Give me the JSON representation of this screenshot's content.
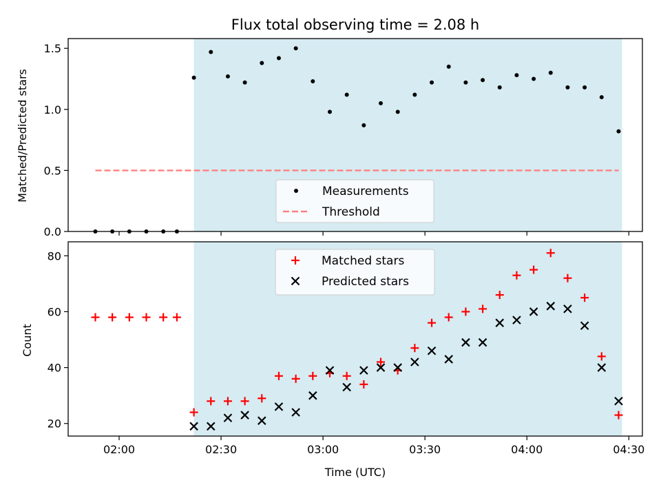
{
  "chart_data": [
    {
      "type": "scatter",
      "title": "Flux total observing time = 2.08 h",
      "ylabel": "Matched/Predicted stars",
      "xlim": [
        "01:45",
        "04:34"
      ],
      "ylim": [
        0,
        1.58
      ],
      "yticks": [
        "0.0",
        "0.5",
        "1.0",
        "1.5"
      ],
      "shaded_span": [
        "02:22",
        "04:28"
      ],
      "shade_color": "#add8e6",
      "legend_position": "bottom-center",
      "series": [
        {
          "name": "Measurements",
          "marker": "dot",
          "color": "#000000",
          "points": [
            [
              "01:53",
              0.0
            ],
            [
              "01:58",
              0.0
            ],
            [
              "02:03",
              0.0
            ],
            [
              "02:08",
              0.0
            ],
            [
              "02:13",
              0.0
            ],
            [
              "02:17",
              0.0
            ],
            [
              "02:22",
              1.26
            ],
            [
              "02:27",
              1.47
            ],
            [
              "02:32",
              1.27
            ],
            [
              "02:37",
              1.22
            ],
            [
              "02:42",
              1.38
            ],
            [
              "02:47",
              1.42
            ],
            [
              "02:52",
              1.5
            ],
            [
              "02:57",
              1.23
            ],
            [
              "03:02",
              0.98
            ],
            [
              "03:07",
              1.12
            ],
            [
              "03:12",
              0.87
            ],
            [
              "03:17",
              1.05
            ],
            [
              "03:22",
              0.98
            ],
            [
              "03:27",
              1.12
            ],
            [
              "03:32",
              1.22
            ],
            [
              "03:37",
              1.35
            ],
            [
              "03:42",
              1.22
            ],
            [
              "03:47",
              1.24
            ],
            [
              "03:52",
              1.18
            ],
            [
              "03:57",
              1.28
            ],
            [
              "04:02",
              1.25
            ],
            [
              "04:07",
              1.3
            ],
            [
              "04:12",
              1.18
            ],
            [
              "04:17",
              1.18
            ],
            [
              "04:22",
              1.1
            ],
            [
              "04:27",
              0.82
            ]
          ]
        },
        {
          "name": "Threshold",
          "marker": "dashed-line",
          "color": "#ff7f7f",
          "points": [
            [
              "01:53",
              0.5
            ],
            [
              "04:27",
              0.5
            ]
          ]
        }
      ]
    },
    {
      "type": "scatter",
      "xlabel": "Time (UTC)",
      "ylabel": "Count",
      "xlim": [
        "01:45",
        "04:34"
      ],
      "ylim": [
        15.5,
        85
      ],
      "yticks": [
        "20",
        "40",
        "60",
        "80"
      ],
      "xticks": [
        "02:00",
        "02:30",
        "03:00",
        "03:30",
        "04:00",
        "04:30"
      ],
      "shaded_span": [
        "02:22",
        "04:28"
      ],
      "shade_color": "#add8e6",
      "legend_position": "top-center",
      "series": [
        {
          "name": "Matched stars",
          "marker": "plus",
          "color": "#ff0000",
          "points": [
            [
              "01:53",
              58
            ],
            [
              "01:58",
              58
            ],
            [
              "02:03",
              58
            ],
            [
              "02:08",
              58
            ],
            [
              "02:13",
              58
            ],
            [
              "02:17",
              58
            ],
            [
              "02:22",
              24
            ],
            [
              "02:27",
              28
            ],
            [
              "02:32",
              28
            ],
            [
              "02:37",
              28
            ],
            [
              "02:42",
              29
            ],
            [
              "02:47",
              37
            ],
            [
              "02:52",
              36
            ],
            [
              "02:57",
              37
            ],
            [
              "03:02",
              38
            ],
            [
              "03:07",
              37
            ],
            [
              "03:12",
              34
            ],
            [
              "03:17",
              42
            ],
            [
              "03:22",
              39
            ],
            [
              "03:27",
              47
            ],
            [
              "03:32",
              56
            ],
            [
              "03:37",
              58
            ],
            [
              "03:42",
              60
            ],
            [
              "03:47",
              61
            ],
            [
              "03:52",
              66
            ],
            [
              "03:57",
              73
            ],
            [
              "04:02",
              75
            ],
            [
              "04:07",
              81
            ],
            [
              "04:12",
              72
            ],
            [
              "04:17",
              65
            ],
            [
              "04:22",
              44
            ],
            [
              "04:27",
              23
            ]
          ]
        },
        {
          "name": "Predicted stars",
          "marker": "x",
          "color": "#000000",
          "points": [
            [
              "02:22",
              19
            ],
            [
              "02:27",
              19
            ],
            [
              "02:32",
              22
            ],
            [
              "02:37",
              23
            ],
            [
              "02:42",
              21
            ],
            [
              "02:47",
              26
            ],
            [
              "02:52",
              24
            ],
            [
              "02:57",
              30
            ],
            [
              "03:02",
              39
            ],
            [
              "03:07",
              33
            ],
            [
              "03:12",
              39
            ],
            [
              "03:17",
              40
            ],
            [
              "03:22",
              40
            ],
            [
              "03:27",
              42
            ],
            [
              "03:32",
              46
            ],
            [
              "03:37",
              43
            ],
            [
              "03:42",
              49
            ],
            [
              "03:47",
              49
            ],
            [
              "03:52",
              56
            ],
            [
              "03:57",
              57
            ],
            [
              "04:02",
              60
            ],
            [
              "04:07",
              62
            ],
            [
              "04:12",
              61
            ],
            [
              "04:17",
              55
            ],
            [
              "04:22",
              40
            ],
            [
              "04:27",
              28
            ]
          ]
        }
      ]
    }
  ]
}
